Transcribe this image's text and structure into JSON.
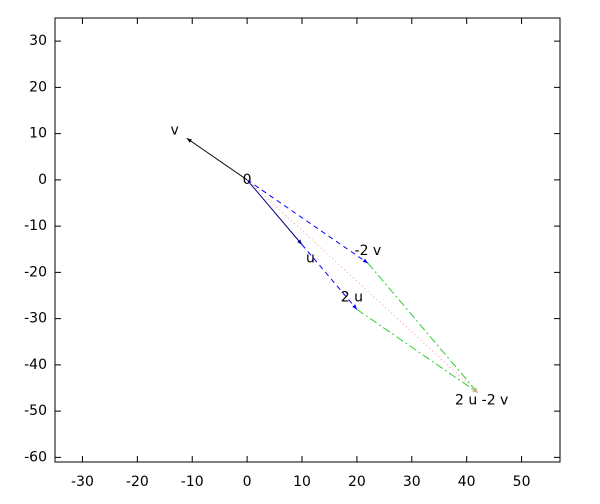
{
  "chart_data": {
    "type": "vector",
    "xlim": [
      -35,
      57
    ],
    "ylim": [
      -61,
      35
    ],
    "xticks": [
      -30,
      -20,
      -10,
      0,
      10,
      20,
      30,
      40,
      50
    ],
    "yticks": [
      -60,
      -50,
      -40,
      -30,
      -20,
      -10,
      0,
      10,
      20,
      30
    ],
    "vectors": [
      {
        "label": "u",
        "x0": 0,
        "y0": 0,
        "x1": 10,
        "y1": -14,
        "color": "#000080",
        "style": "solid"
      },
      {
        "label": "v",
        "x0": 0,
        "y0": 0,
        "x1": -11,
        "y1": 9,
        "color": "#000000",
        "style": "solid"
      },
      {
        "label": "-2 v",
        "x0": 0,
        "y0": 0,
        "x1": 22,
        "y1": -18,
        "color": "#0000ff",
        "style": "dashed"
      },
      {
        "label": "2 u",
        "x0": 10,
        "y0": -14,
        "x1": 20,
        "y1": -28,
        "color": "#0000ff",
        "style": "dashed"
      },
      {
        "label": "2 u -2 v",
        "x0": 22,
        "y0": -18,
        "x1": 42,
        "y1": -46,
        "color": "#33cc33",
        "style": "dashdot"
      },
      {
        "x0": 20,
        "y0": -28,
        "x1": 42,
        "y1": -46,
        "color": "#33cc33",
        "style": "dashdot"
      },
      {
        "x0": 0,
        "y0": 0,
        "x1": 42,
        "y1": -46,
        "color": "#ff9999",
        "style": "dotted"
      }
    ],
    "annotations": [
      {
        "text": "0",
        "x": 0,
        "y": 0
      }
    ]
  }
}
